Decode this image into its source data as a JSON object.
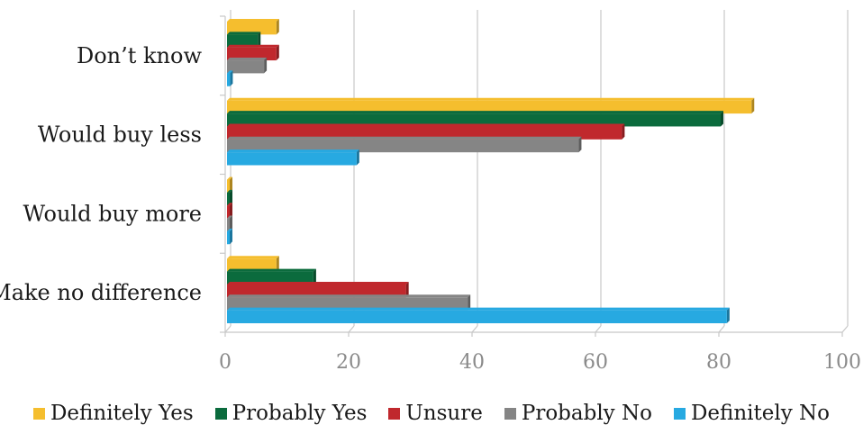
{
  "chart_data": {
    "type": "bar",
    "orientation": "horizontal",
    "categories": [
      "Make no difference",
      "Would buy more",
      "Would buy less",
      "Don’t know"
    ],
    "series": [
      {
        "name": "Definitely Yes",
        "color": "#F5BE2E",
        "values": [
          8,
          0,
          85,
          8
        ]
      },
      {
        "name": "Probably Yes",
        "color": "#0B6B3D",
        "values": [
          14,
          0,
          80,
          5
        ]
      },
      {
        "name": "Unsure",
        "color": "#C0282D",
        "values": [
          29,
          0,
          64,
          8
        ]
      },
      {
        "name": "Probably No",
        "color": "#858585",
        "values": [
          39,
          0,
          57,
          6
        ]
      },
      {
        "name": "Definitely No",
        "color": "#27A9E1",
        "values": [
          81,
          0,
          21,
          0.5
        ]
      }
    ],
    "xlim": [
      0,
      100
    ],
    "xticks": [
      "0",
      "20",
      "40",
      "60",
      "80",
      "100"
    ],
    "grid": true,
    "legend_position": "bottom",
    "style": "3d-perspective"
  }
}
